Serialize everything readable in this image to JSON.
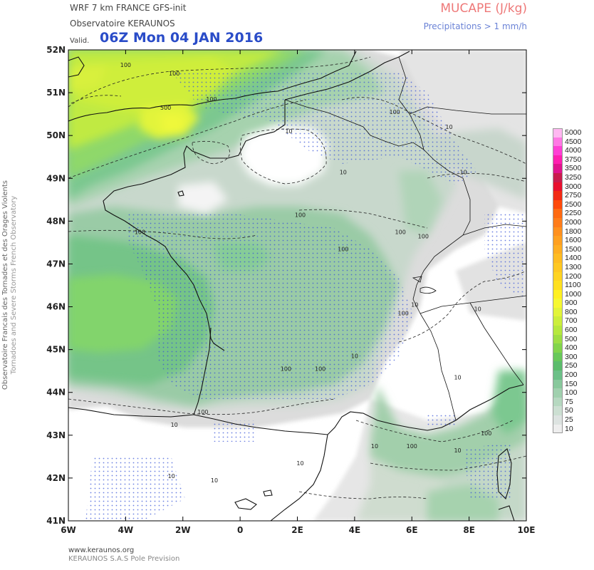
{
  "header": {
    "model_line": "WRF 7 km FRANCE   GFS-init",
    "observatory": "Observatoire KERAUNOS",
    "valid_label": "Valid.",
    "valid_time": "06Z Mon 04 JAN 2016",
    "parameter": "MUCAPE (J/kg)",
    "precip_note": "Precipitations > 1 mm/h"
  },
  "side_title": {
    "line1": "Observatoire Francais des Tornades et des Orages Violents",
    "line2": "Tornadoes and Severe Storms French Observatory"
  },
  "footer": {
    "url": "www.keraunos.org",
    "company": "KERAUNOS S.A.S Pole Prevision"
  },
  "map": {
    "extent": {
      "lon_min": -6,
      "lon_max": 10,
      "lat_min": 41,
      "lat_max": 52
    },
    "lat_labels": [
      "52N",
      "51N",
      "50N",
      "49N",
      "48N",
      "47N",
      "46N",
      "45N",
      "44N",
      "43N",
      "42N",
      "41N"
    ],
    "lon_labels": [
      "6W",
      "4W",
      "2W",
      "0",
      "2E",
      "4E",
      "6E",
      "8E",
      "10E"
    ],
    "contour_labels": [
      {
        "text": "100",
        "lon": -4.0,
        "lat": 51.6
      },
      {
        "text": "100",
        "lon": -2.3,
        "lat": 51.4
      },
      {
        "text": "500",
        "lon": -2.6,
        "lat": 50.6
      },
      {
        "text": "100",
        "lon": -1.0,
        "lat": 50.8
      },
      {
        "text": "10",
        "lon": 1.7,
        "lat": 50.05
      },
      {
        "text": "100",
        "lon": 5.4,
        "lat": 50.5
      },
      {
        "text": "10",
        "lon": 7.3,
        "lat": 50.15
      },
      {
        "text": "10",
        "lon": 3.6,
        "lat": 49.1
      },
      {
        "text": "10",
        "lon": 7.8,
        "lat": 49.1
      },
      {
        "text": "100",
        "lon": 2.1,
        "lat": 48.1
      },
      {
        "text": "100",
        "lon": -3.5,
        "lat": 47.7
      },
      {
        "text": "100",
        "lon": 3.6,
        "lat": 47.3
      },
      {
        "text": "100",
        "lon": 5.6,
        "lat": 47.7
      },
      {
        "text": "100",
        "lon": 6.4,
        "lat": 47.6
      },
      {
        "text": "10",
        "lon": 6.1,
        "lat": 46.0
      },
      {
        "text": "100",
        "lon": 5.7,
        "lat": 45.8
      },
      {
        "text": "10",
        "lon": 8.3,
        "lat": 45.9
      },
      {
        "text": "10",
        "lon": 4.0,
        "lat": 44.8
      },
      {
        "text": "100",
        "lon": 1.6,
        "lat": 44.5
      },
      {
        "text": "100",
        "lon": 2.8,
        "lat": 44.5
      },
      {
        "text": "10",
        "lon": 7.6,
        "lat": 44.3
      },
      {
        "text": "100",
        "lon": -1.3,
        "lat": 43.5
      },
      {
        "text": "10",
        "lon": -2.3,
        "lat": 43.2
      },
      {
        "text": "100",
        "lon": 6.0,
        "lat": 42.7
      },
      {
        "text": "10",
        "lon": 4.7,
        "lat": 42.7
      },
      {
        "text": "10",
        "lon": 7.6,
        "lat": 42.6
      },
      {
        "text": "100",
        "lon": 8.6,
        "lat": 43.0
      },
      {
        "text": "10",
        "lon": 2.1,
        "lat": 42.3
      },
      {
        "text": "10",
        "lon": -0.9,
        "lat": 41.9
      },
      {
        "text": "10",
        "lon": -2.4,
        "lat": 42.0
      }
    ]
  },
  "legend": {
    "levels": [
      "5000",
      "4500",
      "4000",
      "3750",
      "3500",
      "3250",
      "3000",
      "2750",
      "2500",
      "2250",
      "2000",
      "1800",
      "1600",
      "1500",
      "1400",
      "1300",
      "1200",
      "1100",
      "1000",
      "900",
      "800",
      "700",
      "600",
      "500",
      "400",
      "300",
      "250",
      "200",
      "150",
      "100",
      "75",
      "50",
      "25",
      "10"
    ],
    "colors": [
      "#ffb7f1",
      "#ff78e4",
      "#ff3fd4",
      "#ff1fb0",
      "#e0148e",
      "#c81c4d",
      "#e8102e",
      "#f22a14",
      "#ff4a0a",
      "#ff6a12",
      "#ff7c1a",
      "#ff901e",
      "#ffa020",
      "#ffae22",
      "#ffbc22",
      "#ffc822",
      "#ffd422",
      "#ffe020",
      "#fff022",
      "#f6f832",
      "#e2f43a",
      "#ccee3c",
      "#b6e83e",
      "#9ede44",
      "#82d44c",
      "#68c85a",
      "#5cbc6c",
      "#6cc088",
      "#88c89c",
      "#a0d0ae",
      "#b6d8c0",
      "#ccdfd2",
      "#dde3e1",
      "#eeeeee"
    ]
  }
}
